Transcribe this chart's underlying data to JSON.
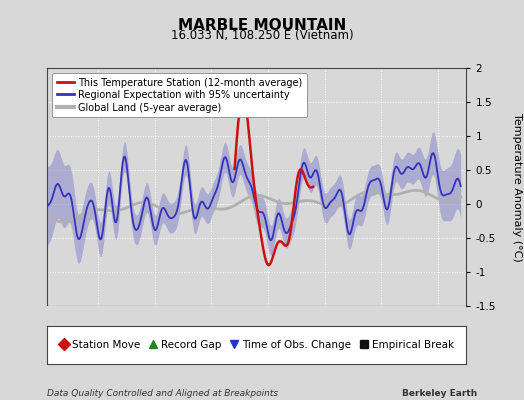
{
  "title": "MARBLE MOUNTAIN",
  "subtitle": "16.033 N, 108.250 E (Vietnam)",
  "ylabel": "Temperature Anomaly (°C)",
  "footer_left": "Data Quality Controlled and Aligned at Breakpoints",
  "footer_right": "Berkeley Earth",
  "xlim": [
    1950.5,
    1987.5
  ],
  "ylim": [
    -1.5,
    2.0
  ],
  "xticks": [
    1955,
    1960,
    1965,
    1970,
    1975,
    1980,
    1985
  ],
  "yticks": [
    -1.5,
    -1.0,
    -0.5,
    0.0,
    0.5,
    1.0,
    1.5,
    2.0
  ],
  "bg_color": "#d8d8d8",
  "plot_bg_color": "#d8d8d8",
  "regional_color": "#3333bb",
  "regional_fill_color": "#8888cc",
  "station_color": "#cc1111",
  "global_color": "#b0b0b0",
  "legend_items": [
    {
      "label": "This Temperature Station (12-month average)",
      "color": "#cc1111",
      "lw": 2
    },
    {
      "label": "Regional Expectation with 95% uncertainty",
      "color": "#3333bb",
      "lw": 2
    },
    {
      "label": "Global Land (5-year average)",
      "color": "#b0b0b0",
      "lw": 3
    }
  ],
  "marker_legend": [
    {
      "label": "Station Move",
      "color": "#cc1111",
      "marker": "D"
    },
    {
      "label": "Record Gap",
      "color": "#228822",
      "marker": "^"
    },
    {
      "label": "Time of Obs. Change",
      "color": "#2233cc",
      "marker": "v"
    },
    {
      "label": "Empirical Break",
      "color": "#111111",
      "marker": "s"
    }
  ]
}
